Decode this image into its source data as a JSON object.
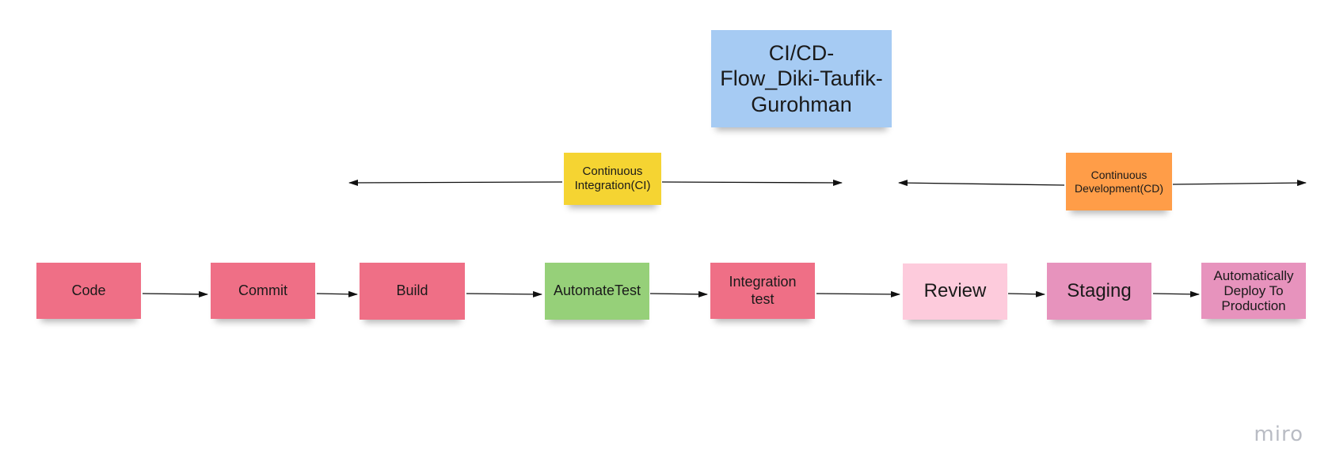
{
  "title": "CI/CD-Flow_Diki-Taufik-Gurohman",
  "phases": {
    "ci": "Continuous Integration(CI)",
    "cd": "Continuous Development(CD)"
  },
  "steps": [
    "Code",
    "Commit",
    "Build",
    "AutomateTest",
    "Integration test",
    "Review",
    "Staging",
    "Automatically Deploy To Production"
  ],
  "branding": {
    "logo_text": "miro"
  },
  "colors": {
    "pink": "#ef6f86",
    "green": "#96d079",
    "light_pink": "#fdcbdc",
    "mauve": "#e793bd",
    "blue": "#a6cbf3",
    "yellow": "#f5d432",
    "orange": "#ff9d48"
  }
}
